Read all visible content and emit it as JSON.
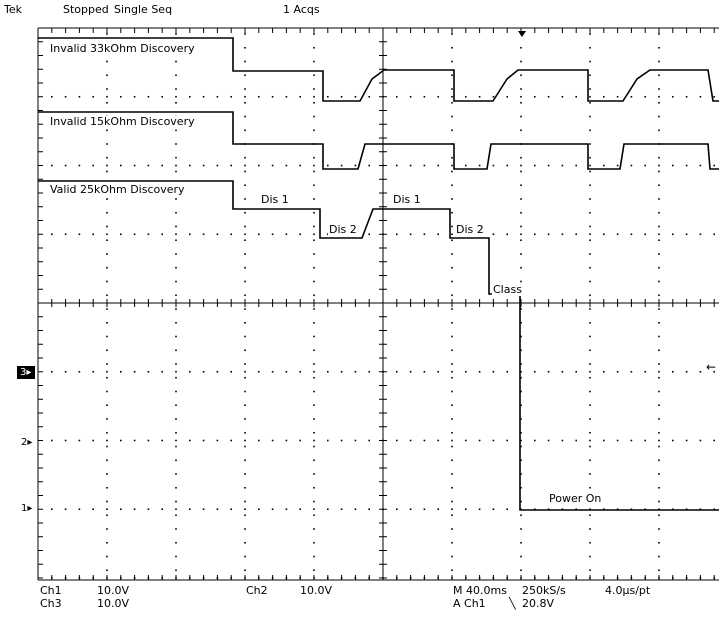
{
  "status": {
    "brand": "Tek",
    "state": "Stopped",
    "mode": "Single Seq",
    "acqs": "1 Acqs"
  },
  "trace_labels": {
    "invalid_33k": "Invalid 33kOhm Discovery",
    "invalid_15k": "Invalid 15kOhm Discovery",
    "valid_25k": "Valid 25kOhm Discovery",
    "dis1_a": "Dis 1",
    "dis2_a": "Dis 2",
    "dis1_b": "Dis 1",
    "dis2_b": "Dis 2",
    "class": "Class",
    "power_on": "Power On"
  },
  "channel_markers": {
    "ch3": "3",
    "ch2": "2",
    "ch1": "1"
  },
  "readout": {
    "ch1_label": "Ch1",
    "ch1_scale": "10.0V",
    "ch3_label": "Ch3",
    "ch3_scale": "10.0V",
    "ch2_label": "Ch2",
    "ch2_scale": "10.0V",
    "timebase": "M 40.0ms",
    "sample_rate": "250kS/s",
    "resolution": "4.0μs/pt",
    "trigger_source": "A  Ch1",
    "trigger_slope": "╲",
    "trigger_level": "20.8V"
  }
}
